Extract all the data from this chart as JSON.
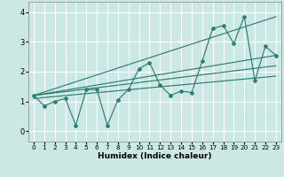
{
  "xlabel": "Humidex (Indice chaleur)",
  "xlim": [
    -0.5,
    23.5
  ],
  "ylim": [
    -0.35,
    4.35
  ],
  "xticks": [
    0,
    1,
    2,
    3,
    4,
    5,
    6,
    7,
    8,
    9,
    10,
    11,
    12,
    13,
    14,
    15,
    16,
    17,
    18,
    19,
    20,
    21,
    22,
    23
  ],
  "yticks": [
    0,
    1,
    2,
    3,
    4
  ],
  "bg_color": "#cce8e4",
  "grid_color": "#ffffff",
  "line_color": "#2e7d72",
  "jagged_line": [
    [
      0,
      1.2
    ],
    [
      1,
      0.85
    ],
    [
      2,
      1.0
    ],
    [
      3,
      1.1
    ],
    [
      4,
      0.2
    ],
    [
      5,
      1.4
    ],
    [
      6,
      1.4
    ],
    [
      7,
      0.2
    ],
    [
      8,
      1.05
    ],
    [
      9,
      1.4
    ],
    [
      10,
      2.1
    ],
    [
      11,
      2.3
    ],
    [
      12,
      1.55
    ],
    [
      13,
      1.2
    ],
    [
      14,
      1.35
    ],
    [
      15,
      1.3
    ],
    [
      16,
      2.35
    ],
    [
      17,
      3.45
    ],
    [
      18,
      3.55
    ],
    [
      19,
      2.95
    ],
    [
      20,
      3.85
    ],
    [
      21,
      1.7
    ],
    [
      22,
      2.85
    ],
    [
      23,
      2.55
    ]
  ],
  "trend_line1": [
    [
      0,
      1.2
    ],
    [
      23,
      3.85
    ]
  ],
  "trend_line2": [
    [
      0,
      1.2
    ],
    [
      23,
      2.55
    ]
  ],
  "trend_line3": [
    [
      0,
      1.2
    ],
    [
      23,
      2.2
    ]
  ],
  "trend_line4": [
    [
      0,
      1.1
    ],
    [
      23,
      1.85
    ]
  ]
}
